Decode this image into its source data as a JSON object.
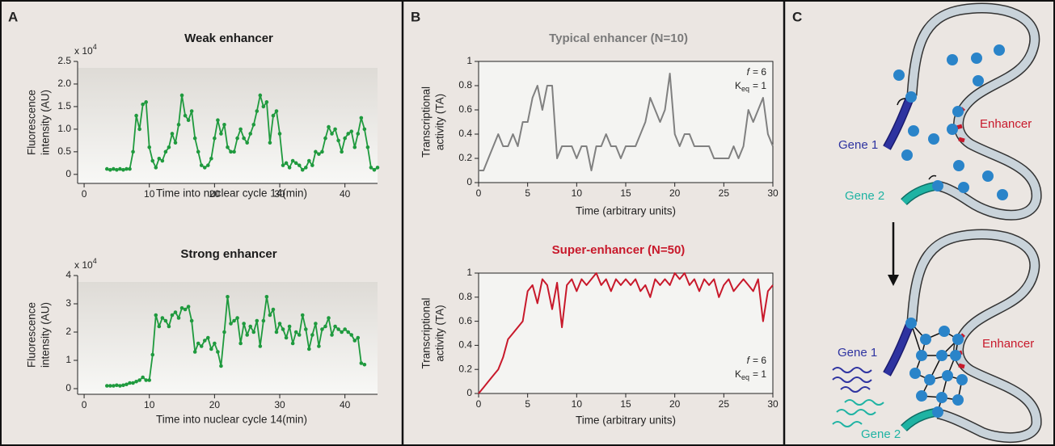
{
  "panel_labels": [
    "A",
    "B",
    "C"
  ],
  "chart_data": [
    {
      "type": "line",
      "title": "Weak enhancer",
      "title_color": "#1a1a1a",
      "x_label": "Time into nuclear cycle 14(min)",
      "y_label": [
        "Fluorescence",
        "intensity (AU)"
      ],
      "y_multiplier": {
        "base": "x 10",
        "exponent": "4"
      },
      "color": "#1f9a3e",
      "markers": true,
      "frame": false,
      "background": "gradient",
      "xlim": [
        -1,
        45
      ],
      "ylim": [
        -0.2,
        2.5
      ],
      "xticks": [
        0,
        10,
        20,
        30,
        40
      ],
      "yticks": [
        0,
        0.5,
        {
          "value": 1,
          "label": "1.0"
        },
        1.5,
        {
          "value": 2,
          "label": "2.0"
        },
        2.5
      ],
      "x": [
        3.5,
        4,
        4.5,
        5,
        5.5,
        6,
        6.5,
        7,
        7.5,
        8,
        8.5,
        9,
        9.5,
        10,
        10.5,
        11,
        11.5,
        12,
        12.5,
        13,
        13.5,
        14,
        14.5,
        15,
        15.5,
        16,
        16.5,
        17,
        17.5,
        18,
        18.5,
        19,
        19.5,
        20,
        20.5,
        21,
        21.5,
        22,
        22.5,
        23,
        23.5,
        24,
        24.5,
        25,
        25.5,
        26,
        26.5,
        27,
        27.5,
        28,
        28.5,
        29,
        29.5,
        30,
        30.5,
        31,
        31.5,
        32,
        32.5,
        33,
        33.5,
        34,
        34.5,
        35,
        35.5,
        36,
        36.5,
        37,
        37.5,
        38,
        38.5,
        39,
        39.5,
        40,
        40.5,
        41,
        41.5,
        42,
        42.5,
        43,
        43.5,
        44,
        44.5,
        45
      ],
      "values": [
        0.12,
        0.1,
        0.12,
        0.1,
        0.12,
        0.1,
        0.12,
        0.12,
        0.5,
        1.3,
        1.0,
        1.55,
        1.6,
        0.6,
        0.3,
        0.15,
        0.35,
        0.3,
        0.5,
        0.6,
        0.9,
        0.7,
        1.1,
        1.75,
        1.3,
        1.2,
        1.4,
        0.8,
        0.5,
        0.2,
        0.15,
        0.2,
        0.35,
        0.8,
        1.2,
        0.9,
        1.1,
        0.6,
        0.5,
        0.5,
        0.8,
        1.0,
        0.8,
        0.7,
        0.9,
        1.1,
        1.4,
        1.75,
        1.5,
        1.6,
        0.7,
        1.3,
        1.4,
        0.9,
        0.2,
        0.25,
        0.15,
        0.3,
        0.25,
        0.2,
        0.1,
        0.15,
        0.3,
        0.2,
        0.5,
        0.45,
        0.5,
        0.8,
        1.05,
        0.9,
        1.0,
        0.75,
        0.5,
        0.8,
        0.9,
        0.95,
        0.6,
        0.9,
        1.25,
        1.0,
        0.6,
        0.15,
        0.1,
        0.15
      ]
    },
    {
      "type": "line",
      "title": "Strong enhancer",
      "title_color": "#1a1a1a",
      "x_label": "Time into nuclear cycle 14(min)",
      "y_label": [
        "Fluorescence",
        "intensity (AU)"
      ],
      "y_multiplier": {
        "base": "x 10",
        "exponent": "4"
      },
      "color": "#1f9a3e",
      "markers": true,
      "frame": false,
      "background": "gradient",
      "xlim": [
        -1,
        45
      ],
      "ylim": [
        -0.2,
        4
      ],
      "xticks": [
        0,
        10,
        20,
        30,
        40
      ],
      "yticks": [
        0,
        1,
        2,
        3,
        4
      ],
      "x": [
        3.5,
        4,
        4.5,
        5,
        5.5,
        6,
        6.5,
        7,
        7.5,
        8,
        8.5,
        9,
        9.5,
        10,
        10.5,
        11,
        11.5,
        12,
        12.5,
        13,
        13.5,
        14,
        14.5,
        15,
        15.5,
        16,
        16.5,
        17,
        17.5,
        18,
        18.5,
        19,
        19.5,
        20,
        20.5,
        21,
        21.5,
        22,
        22.5,
        23,
        23.5,
        24,
        24.5,
        25,
        25.5,
        26,
        26.5,
        27,
        27.5,
        28,
        28.5,
        29,
        29.5,
        30,
        30.5,
        31,
        31.5,
        32,
        32.5,
        33,
        33.5,
        34,
        34.5,
        35,
        35.5,
        36,
        36.5,
        37,
        37.5,
        38,
        38.5,
        39,
        39.5,
        40,
        40.5,
        41,
        41.5,
        42,
        42.5,
        43
      ],
      "values": [
        0.1,
        0.1,
        0.1,
        0.12,
        0.1,
        0.12,
        0.15,
        0.2,
        0.2,
        0.25,
        0.3,
        0.4,
        0.3,
        0.3,
        1.2,
        2.6,
        2.2,
        2.5,
        2.4,
        2.2,
        2.6,
        2.7,
        2.5,
        2.85,
        2.8,
        2.9,
        2.4,
        1.3,
        1.6,
        1.5,
        1.7,
        1.8,
        1.4,
        1.6,
        1.3,
        0.8,
        2.0,
        3.25,
        2.3,
        2.4,
        2.5,
        1.6,
        2.3,
        1.9,
        2.2,
        2.0,
        2.4,
        1.5,
        2.4,
        3.25,
        2.6,
        2.8,
        2.0,
        2.3,
        2.1,
        1.8,
        2.2,
        1.6,
        2.0,
        1.9,
        2.6,
        2.1,
        1.4,
        1.9,
        2.3,
        1.5,
        2.1,
        2.2,
        2.5,
        1.9,
        2.2,
        2.1,
        2.0,
        2.1,
        2.0,
        1.9,
        1.7,
        1.8,
        0.9,
        0.85
      ]
    },
    {
      "type": "line",
      "title": "Typical enhancer (N=10)",
      "title_color": "#7a7a7a",
      "x_label": "Time (arbitrary units)",
      "y_label": [
        "Transcriptional",
        "activity (TA)"
      ],
      "annotation": {
        "f": {
          "symbol": "f",
          "rest": "= 6"
        },
        "k": {
          "symbol": "K",
          "subscript": "eq",
          "rest": "= 1"
        }
      },
      "annotation_corner": "top-right",
      "color": "#808080",
      "markers": false,
      "frame": true,
      "background": "plain",
      "xlim": [
        0,
        30
      ],
      "ylim": [
        0,
        1
      ],
      "xticks": [
        0,
        5,
        10,
        15,
        20,
        25,
        30
      ],
      "yticks": [
        0,
        0.2,
        0.4,
        0.6,
        0.8,
        1
      ],
      "x": [
        0,
        0.5,
        1,
        1.5,
        2,
        2.5,
        3,
        3.5,
        4,
        4.5,
        5,
        5.5,
        6,
        6.5,
        7,
        7.5,
        8,
        8.5,
        9,
        9.5,
        10,
        10.5,
        11,
        11.5,
        12,
        12.5,
        13,
        13.5,
        14,
        14.5,
        15,
        15.5,
        16,
        16.5,
        17,
        17.5,
        18,
        18.5,
        19,
        19.5,
        20,
        20.5,
        21,
        21.5,
        22,
        22.5,
        23,
        23.5,
        24,
        24.5,
        25,
        25.5,
        26,
        26.5,
        27,
        27.5,
        28,
        28.5,
        29,
        29.5,
        30
      ],
      "values": [
        0.1,
        0.1,
        0.2,
        0.3,
        0.4,
        0.3,
        0.3,
        0.4,
        0.3,
        0.5,
        0.5,
        0.7,
        0.8,
        0.6,
        0.8,
        0.8,
        0.2,
        0.3,
        0.3,
        0.3,
        0.2,
        0.3,
        0.3,
        0.1,
        0.3,
        0.3,
        0.4,
        0.3,
        0.3,
        0.2,
        0.3,
        0.3,
        0.3,
        0.4,
        0.5,
        0.7,
        0.6,
        0.5,
        0.6,
        0.9,
        0.4,
        0.3,
        0.4,
        0.4,
        0.3,
        0.3,
        0.3,
        0.3,
        0.2,
        0.2,
        0.2,
        0.2,
        0.3,
        0.2,
        0.3,
        0.6,
        0.5,
        0.6,
        0.7,
        0.4,
        0.3
      ]
    },
    {
      "type": "line",
      "title": "Super-enhancer (N=50)",
      "title_color": "#c8192b",
      "x_label": "Time (arbitrary units)",
      "y_label": [
        "Transcriptional",
        "activity (TA)"
      ],
      "annotation": {
        "f": {
          "symbol": "f",
          "rest": "= 6"
        },
        "k": {
          "symbol": "K",
          "subscript": "eq",
          "rest": "= 1"
        }
      },
      "annotation_corner": "bottom-right",
      "color": "#c8192b",
      "markers": false,
      "frame": true,
      "background": "plain",
      "xlim": [
        0,
        30
      ],
      "ylim": [
        0,
        1
      ],
      "xticks": [
        0,
        5,
        10,
        15,
        20,
        25,
        30
      ],
      "yticks": [
        0,
        0.2,
        0.4,
        0.6,
        0.8,
        1
      ],
      "x": [
        0,
        0.5,
        1,
        1.5,
        2,
        2.5,
        3,
        3.5,
        4,
        4.5,
        5,
        5.5,
        6,
        6.5,
        7,
        7.5,
        8,
        8.5,
        9,
        9.5,
        10,
        10.5,
        11,
        11.5,
        12,
        12.5,
        13,
        13.5,
        14,
        14.5,
        15,
        15.5,
        16,
        16.5,
        17,
        17.5,
        18,
        18.5,
        19,
        19.5,
        20,
        20.5,
        21,
        21.5,
        22,
        22.5,
        23,
        23.5,
        24,
        24.5,
        25,
        25.5,
        26,
        26.5,
        27,
        27.5,
        28,
        28.5,
        29,
        29.5,
        30
      ],
      "values": [
        0,
        0.05,
        0.1,
        0.15,
        0.2,
        0.3,
        0.45,
        0.5,
        0.55,
        0.6,
        0.85,
        0.9,
        0.75,
        0.95,
        0.9,
        0.7,
        0.92,
        0.55,
        0.9,
        0.95,
        0.85,
        0.95,
        0.9,
        0.95,
        1,
        0.9,
        0.95,
        0.85,
        0.95,
        0.9,
        0.95,
        0.9,
        0.95,
        0.85,
        0.9,
        0.8,
        0.95,
        0.9,
        0.95,
        0.9,
        1,
        0.95,
        1,
        0.9,
        0.95,
        0.85,
        0.95,
        0.9,
        0.95,
        0.8,
        0.9,
        0.95,
        0.85,
        0.9,
        0.95,
        0.9,
        0.85,
        0.95,
        0.6,
        0.85,
        0.9
      ]
    }
  ],
  "diagram": {
    "top": {
      "gene1": "Gene 1",
      "gene2": "Gene 2",
      "enhancer": "Enhancer"
    },
    "bottom": {
      "gene1": "Gene 1",
      "gene2": "Gene 2",
      "enhancer": "Enhancer"
    }
  }
}
